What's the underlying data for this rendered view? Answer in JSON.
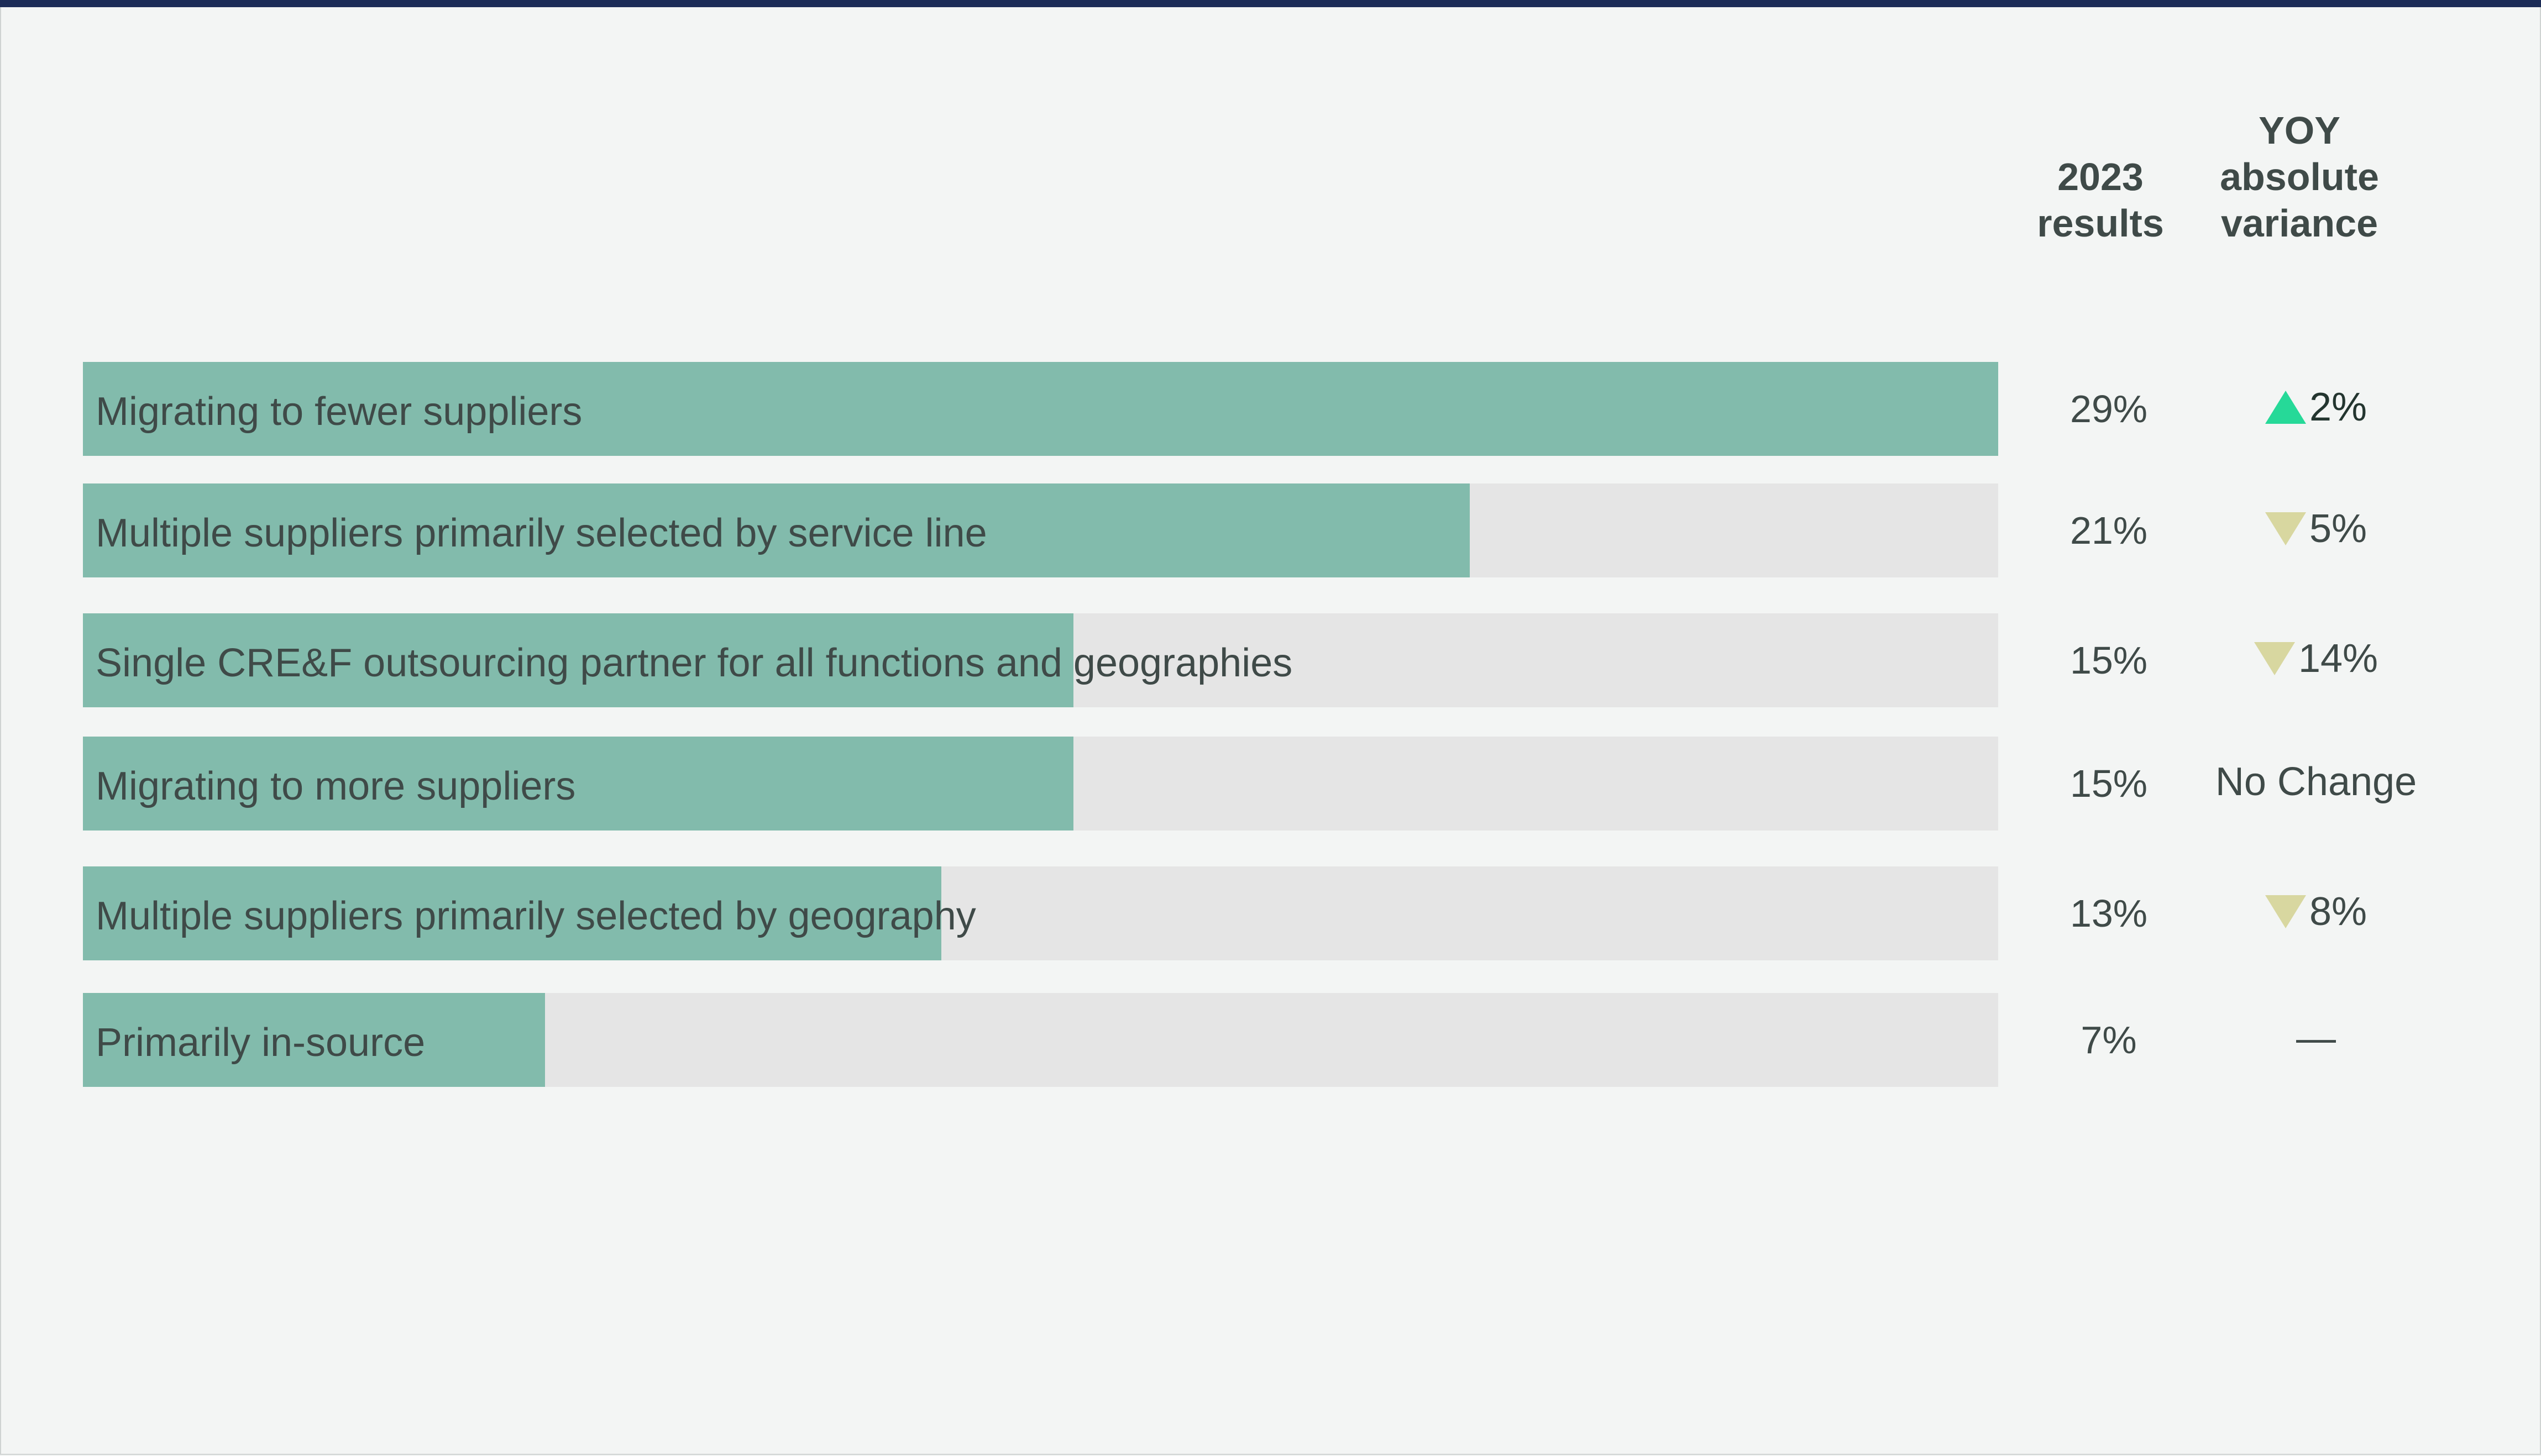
{
  "chart_data": {
    "type": "bar",
    "orientation": "horizontal",
    "columns": {
      "results_header": [
        "2023",
        "results"
      ],
      "variance_header": [
        "YOY",
        "absolute",
        "variance"
      ]
    },
    "categories": [
      "Migrating to fewer suppliers",
      "Multiple suppliers primarily selected by service line",
      "Single CRE&F outsourcing partner for all functions and geographies",
      "Migrating to more suppliers",
      "Multiple suppliers primarily selected by geography",
      "Primarily in-source"
    ],
    "values": [
      29,
      21,
      15,
      15,
      13,
      7
    ],
    "value_labels": [
      "29%",
      "21%",
      "15%",
      "15%",
      "13%",
      "7%"
    ],
    "variance": [
      {
        "direction": "up",
        "text": "2%"
      },
      {
        "direction": "down",
        "text": "5%"
      },
      {
        "direction": "down",
        "text": "14%"
      },
      {
        "direction": "none",
        "text": "No Change"
      },
      {
        "direction": "down",
        "text": "8%"
      },
      {
        "direction": "none",
        "text": "—"
      }
    ],
    "xlim": [
      0,
      29
    ],
    "colors": {
      "bar": "#82bbac",
      "track": "#e5e5e5",
      "up": "#26d998",
      "down": "#d8d7a0"
    }
  }
}
